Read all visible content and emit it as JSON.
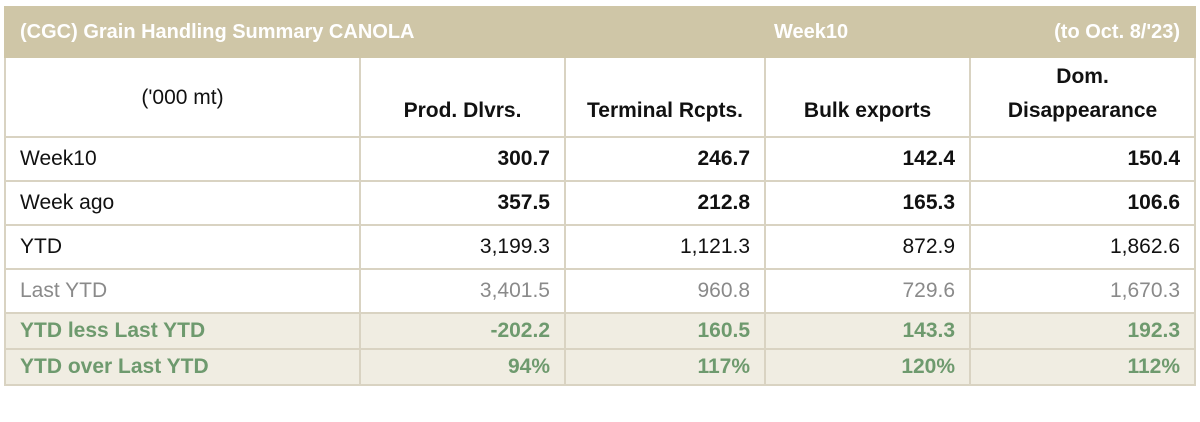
{
  "title": {
    "main": "(CGC) Grain Handling Summary CANOLA",
    "week": "Week10",
    "date": "(to Oct. 8/'23)"
  },
  "header": {
    "units": "('000 mt)",
    "columns": [
      {
        "line1": "",
        "line2": "Prod. Dlvrs."
      },
      {
        "line1": "",
        "line2": "Terminal Rcpts."
      },
      {
        "line1": "",
        "line2": "Bulk exports"
      },
      {
        "line1": "Dom.",
        "line2": "Disappearance"
      }
    ]
  },
  "rows": [
    {
      "label": "Week10",
      "values": [
        "300.7",
        "246.7",
        "142.4",
        "150.4"
      ]
    },
    {
      "label": "Week ago",
      "values": [
        "357.5",
        "212.8",
        "165.3",
        "106.6"
      ]
    },
    {
      "label": "YTD",
      "values": [
        "3,199.3",
        "1,121.3",
        "872.9",
        "1,862.6"
      ]
    },
    {
      "label": "Last YTD",
      "values": [
        "3,401.5",
        "960.8",
        "729.6",
        "1,670.3"
      ]
    },
    {
      "label": "YTD less Last YTD",
      "values": [
        "-202.2",
        "160.5",
        "143.3",
        "192.3"
      ]
    },
    {
      "label": "YTD over Last YTD",
      "values": [
        "94%",
        "117%",
        "120%",
        "112%"
      ]
    }
  ],
  "colors": {
    "title_bg": "#cfc6a7",
    "border": "#d9d3c2",
    "green_text": "#6e9a6e",
    "green_bg": "#f0ede2",
    "muted_text": "#8a8a8a"
  }
}
